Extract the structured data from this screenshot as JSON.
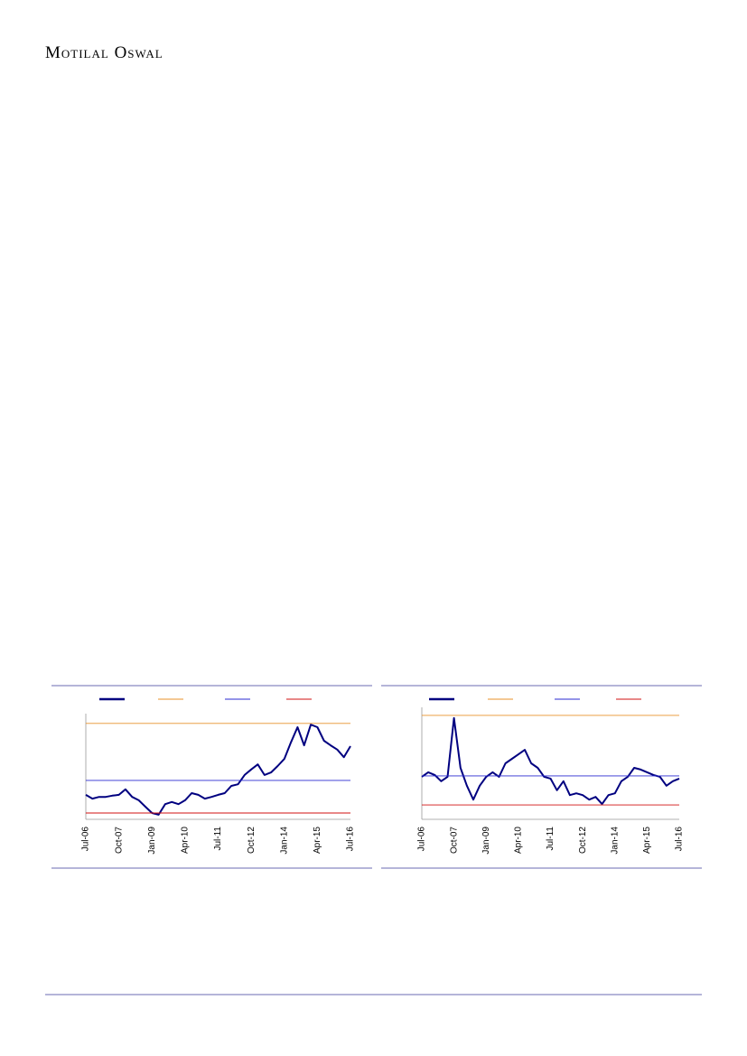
{
  "header": {
    "brand": "Motilal Oswal"
  },
  "chart_data": [
    {
      "type": "line",
      "categories": [
        "Jul-06",
        null,
        null,
        null,
        null,
        "Oct-07",
        null,
        null,
        null,
        null,
        "Jan-09",
        null,
        null,
        null,
        null,
        "Apr-10",
        null,
        null,
        null,
        null,
        "Jul-11",
        null,
        null,
        null,
        null,
        "Oct-12",
        null,
        null,
        null,
        null,
        "Jan-14",
        null,
        null,
        null,
        null,
        "Apr-15",
        null,
        null,
        null,
        null,
        "Jul-16"
      ],
      "ylim": [
        5,
        30
      ],
      "series": [
        {
          "color": "#000080",
          "values": [
            10.8,
            9.9,
            10.3,
            10.3,
            10.6,
            10.8,
            12.1,
            10.3,
            9.5,
            8.0,
            6.5,
            6.1,
            8.6,
            9.1,
            8.6,
            9.5,
            11.2,
            10.8,
            9.9,
            10.3,
            10.8,
            11.2,
            12.9,
            13.3,
            15.5,
            16.8,
            18.0,
            15.5,
            16.1,
            17.6,
            19.3,
            23.2,
            26.8,
            22.5,
            27.4,
            26.8,
            23.6,
            22.5,
            21.5,
            19.7,
            22.3
          ]
        },
        {
          "color": "#e8902a",
          "values": [
            27.7,
            27.7,
            27.7,
            27.7,
            27.7,
            27.7,
            27.7,
            27.7,
            27.7,
            27.7,
            27.7,
            27.7,
            27.7,
            27.7,
            27.7,
            27.7,
            27.7,
            27.7,
            27.7,
            27.7,
            27.7,
            27.7,
            27.7,
            27.7,
            27.7,
            27.7,
            27.7,
            27.7,
            27.7,
            27.7,
            27.7,
            27.7,
            27.7,
            27.7,
            27.7,
            27.7,
            27.7,
            27.7,
            27.7,
            27.7,
            27.7
          ]
        },
        {
          "color": "#2a2ad0",
          "values": [
            14.2,
            14.2,
            14.2,
            14.2,
            14.2,
            14.2,
            14.2,
            14.2,
            14.2,
            14.2,
            14.2,
            14.2,
            14.2,
            14.2,
            14.2,
            14.2,
            14.2,
            14.2,
            14.2,
            14.2,
            14.2,
            14.2,
            14.2,
            14.2,
            14.2,
            14.2,
            14.2,
            14.2,
            14.2,
            14.2,
            14.2,
            14.2,
            14.2,
            14.2,
            14.2,
            14.2,
            14.2,
            14.2,
            14.2,
            14.2,
            14.2
          ]
        },
        {
          "color": "#d01010",
          "values": [
            6.5,
            6.5,
            6.5,
            6.5,
            6.5,
            6.5,
            6.5,
            6.5,
            6.5,
            6.5,
            6.5,
            6.5,
            6.5,
            6.5,
            6.5,
            6.5,
            6.5,
            6.5,
            6.5,
            6.5,
            6.5,
            6.5,
            6.5,
            6.5,
            6.5,
            6.5,
            6.5,
            6.5,
            6.5,
            6.5,
            6.5,
            6.5,
            6.5,
            6.5,
            6.5,
            6.5,
            6.5,
            6.5,
            6.5,
            6.5,
            6.5
          ]
        }
      ]
    },
    {
      "type": "line",
      "categories": [
        "Jul-06",
        null,
        null,
        null,
        null,
        "Oct-07",
        null,
        null,
        null,
        null,
        "Jan-09",
        null,
        null,
        null,
        null,
        "Apr-10",
        null,
        null,
        null,
        null,
        "Jul-11",
        null,
        null,
        null,
        null,
        "Oct-12",
        null,
        null,
        null,
        null,
        "Jan-14",
        null,
        null,
        null,
        null,
        "Apr-15",
        null,
        null,
        null,
        null,
        "Jul-16"
      ],
      "ylim": [
        0,
        25
      ],
      "series": [
        {
          "color": "#000080",
          "values": [
            9.5,
            10.5,
            9.9,
            8.5,
            9.5,
            22.6,
            11.5,
            7.5,
            4.4,
            7.5,
            9.5,
            10.5,
            9.5,
            12.5,
            13.5,
            14.5,
            15.5,
            12.5,
            11.5,
            9.5,
            9.1,
            6.5,
            8.5,
            5.4,
            5.8,
            5.4,
            4.4,
            5.0,
            3.4,
            5.4,
            5.8,
            8.5,
            9.5,
            11.5,
            11.1,
            10.5,
            9.9,
            9.5,
            7.5,
            8.5,
            9.1
          ]
        },
        {
          "color": "#e8902a",
          "values": [
            23.2,
            23.2,
            23.2,
            23.2,
            23.2,
            23.2,
            23.2,
            23.2,
            23.2,
            23.2,
            23.2,
            23.2,
            23.2,
            23.2,
            23.2,
            23.2,
            23.2,
            23.2,
            23.2,
            23.2,
            23.2,
            23.2,
            23.2,
            23.2,
            23.2,
            23.2,
            23.2,
            23.2,
            23.2,
            23.2,
            23.2,
            23.2,
            23.2,
            23.2,
            23.2,
            23.2,
            23.2,
            23.2,
            23.2,
            23.2,
            23.2
          ]
        },
        {
          "color": "#2a2ad0",
          "values": [
            9.7,
            9.7,
            9.7,
            9.7,
            9.7,
            9.7,
            9.7,
            9.7,
            9.7,
            9.7,
            9.7,
            9.7,
            9.7,
            9.7,
            9.7,
            9.7,
            9.7,
            9.7,
            9.7,
            9.7,
            9.7,
            9.7,
            9.7,
            9.7,
            9.7,
            9.7,
            9.7,
            9.7,
            9.7,
            9.7,
            9.7,
            9.7,
            9.7,
            9.7,
            9.7,
            9.7,
            9.7,
            9.7,
            9.7,
            9.7,
            9.7
          ]
        },
        {
          "color": "#d01010",
          "values": [
            3.2,
            3.2,
            3.2,
            3.2,
            3.2,
            3.2,
            3.2,
            3.2,
            3.2,
            3.2,
            3.2,
            3.2,
            3.2,
            3.2,
            3.2,
            3.2,
            3.2,
            3.2,
            3.2,
            3.2,
            3.2,
            3.2,
            3.2,
            3.2,
            3.2,
            3.2,
            3.2,
            3.2,
            3.2,
            3.2,
            3.2,
            3.2,
            3.2,
            3.2,
            3.2,
            3.2,
            3.2,
            3.2,
            3.2,
            3.2,
            3.2
          ]
        }
      ]
    }
  ]
}
